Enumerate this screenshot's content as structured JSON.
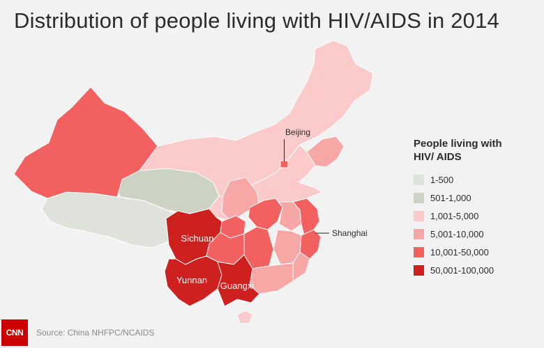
{
  "title": "Distribution of people living with HIV/AIDS in 2014",
  "legend": {
    "title_line1": "People living with",
    "title_line2": "HIV/ AIDS",
    "items": [
      {
        "label": "1-500",
        "color": "#dfe2db"
      },
      {
        "label": "501-1,000",
        "color": "#cdd3c4"
      },
      {
        "label": "1,001-5,000",
        "color": "#fbcaca"
      },
      {
        "label": "5,001-10,000",
        "color": "#f8a7a7"
      },
      {
        "label": "10,001-50,000",
        "color": "#f26060"
      },
      {
        "label": "50,001-100,000",
        "color": "#cf2020"
      }
    ]
  },
  "map": {
    "city_labels": {
      "beijing": "Beijing",
      "shanghai": "Shanghai"
    },
    "province_labels": {
      "sichuan": "Sichuan",
      "yunnan": "Yunnan",
      "guangxi": "Guangxi"
    }
  },
  "footer": {
    "logo_text": "CNN",
    "source": "Source: China NHFPC/NCAIDS"
  }
}
